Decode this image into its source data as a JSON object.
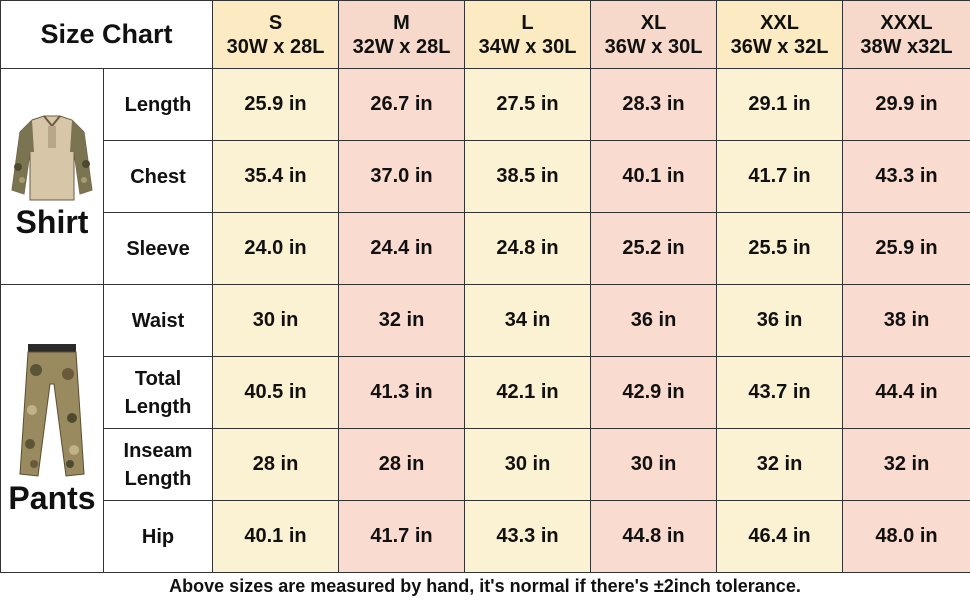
{
  "title": "Size Chart",
  "sizes": [
    {
      "size": "S",
      "dims": "30W x 28L"
    },
    {
      "size": "M",
      "dims": "32W x 28L"
    },
    {
      "size": "L",
      "dims": "34W x 30L"
    },
    {
      "size": "XL",
      "dims": "36W x 30L"
    },
    {
      "size": "XXL",
      "dims": "36W x 32L"
    },
    {
      "size": "XXXL",
      "dims": "38W x32L"
    }
  ],
  "categories": [
    {
      "name": "Shirt",
      "icon": "camo-shirt-icon",
      "rows": [
        {
          "label": "Length",
          "values": [
            "25.9 in",
            "26.7 in",
            "27.5 in",
            "28.3 in",
            "29.1 in",
            "29.9 in"
          ]
        },
        {
          "label": "Chest",
          "values": [
            "35.4 in",
            "37.0 in",
            "38.5 in",
            "40.1 in",
            "41.7 in",
            "43.3 in"
          ]
        },
        {
          "label": "Sleeve",
          "values": [
            "24.0 in",
            "24.4 in",
            "24.8 in",
            "25.2 in",
            "25.5 in",
            "25.9 in"
          ]
        }
      ]
    },
    {
      "name": "Pants",
      "icon": "camo-pants-icon",
      "rows": [
        {
          "label": "Waist",
          "values": [
            "30 in",
            "32 in",
            "34 in",
            "36 in",
            "36 in",
            "38 in"
          ]
        },
        {
          "label_line1": "Total",
          "label_line2": "Length",
          "values": [
            "40.5 in",
            "41.3 in",
            "42.1 in",
            "42.9 in",
            "43.7 in",
            "44.4 in"
          ]
        },
        {
          "label_line1": "Inseam",
          "label_line2": "Length",
          "values": [
            "28 in",
            "28 in",
            "30 in",
            "30 in",
            "32 in",
            "32 in"
          ]
        },
        {
          "label": "Hip",
          "values": [
            "40.1 in",
            "41.7 in",
            "43.3 in",
            "44.8 in",
            "46.4 in",
            "48.0 in"
          ]
        }
      ]
    }
  ],
  "footer": "Above sizes are measured by hand, it's normal if there's ±2inch tolerance.",
  "colors": {
    "yellow_col": "#fbf1d3",
    "pink_col": "#f9dccf",
    "yellow_head": "#fbeac2",
    "pink_head": "#f7d9cc",
    "border": "#333333"
  }
}
